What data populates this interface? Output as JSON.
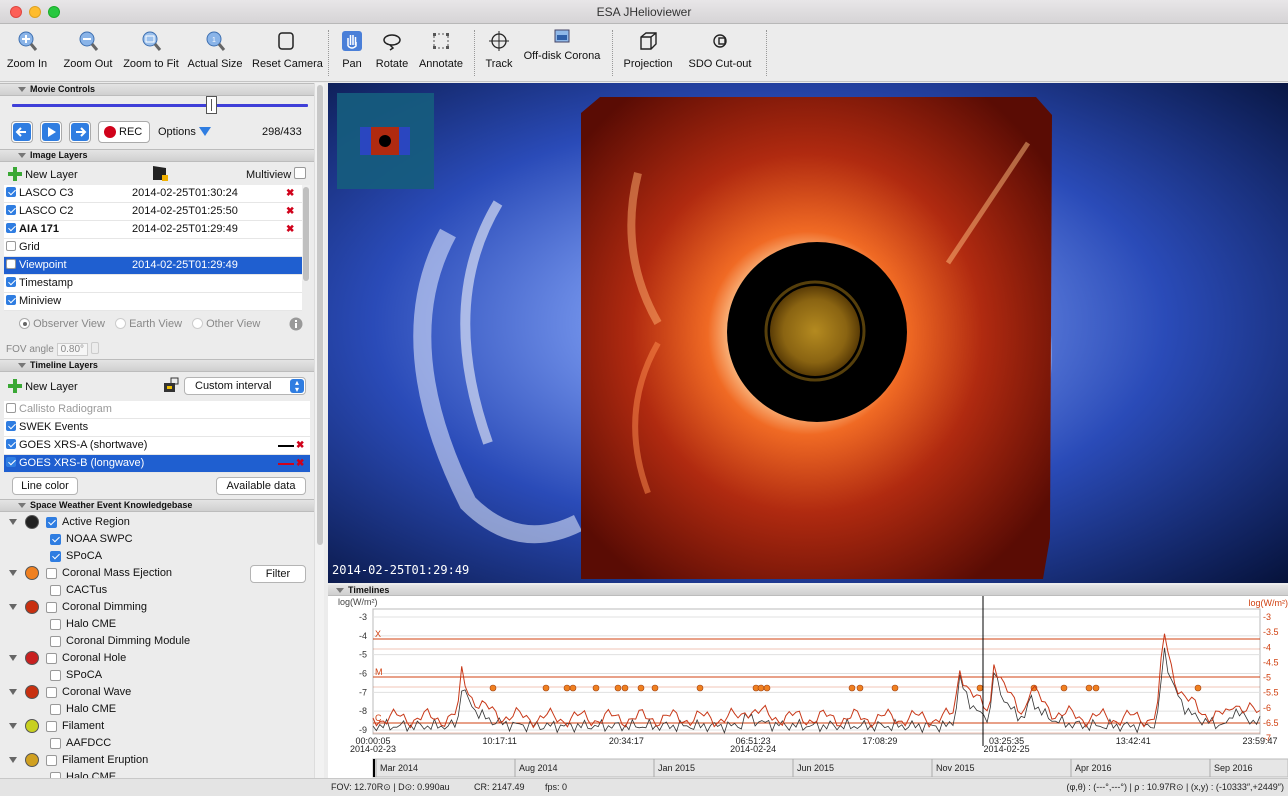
{
  "window": {
    "title": "ESA JHelioviewer"
  },
  "toolbar": {
    "zoom_in": "Zoom In",
    "zoom_out": "Zoom Out",
    "zoom_fit": "Zoom to Fit",
    "actual_size": "Actual Size",
    "reset_camera": "Reset Camera",
    "pan": "Pan",
    "rotate": "Rotate",
    "annotate": "Annotate",
    "track": "Track",
    "offdisk": "Off-disk Corona",
    "projection": "Projection",
    "sdo_cutout": "SDO Cut-out"
  },
  "movie": {
    "header": "Movie Controls",
    "rec": "REC",
    "options": "Options",
    "frame": "298/433"
  },
  "image_layers": {
    "header": "Image Layers",
    "new_layer": "New Layer",
    "multiview": "Multiview",
    "rows": [
      {
        "name": "LASCO C3",
        "date": "2014-02-25T01:30:24",
        "checked": true,
        "bold": false,
        "del": true
      },
      {
        "name": "LASCO C2",
        "date": "2014-02-25T01:25:50",
        "checked": true,
        "bold": false,
        "del": true
      },
      {
        "name": "AIA 171",
        "date": "2014-02-25T01:29:49",
        "checked": true,
        "bold": true,
        "del": true
      },
      {
        "name": "Grid",
        "date": "",
        "checked": false,
        "bold": false,
        "del": false
      },
      {
        "name": "Viewpoint",
        "date": "2014-02-25T01:29:49",
        "checked": false,
        "bold": false,
        "del": false,
        "selected": true
      },
      {
        "name": "Timestamp",
        "date": "",
        "checked": true,
        "bold": false,
        "del": false
      },
      {
        "name": "Miniview",
        "date": "",
        "checked": true,
        "bold": false,
        "del": false
      }
    ],
    "observer_view": "Observer View",
    "earth_view": "Earth View",
    "other_view": "Other View",
    "fov_label": "FOV angle",
    "fov_value": "0.80°"
  },
  "timeline_layers": {
    "header": "Timeline Layers",
    "new_layer": "New Layer",
    "interval": "Custom interval",
    "rows": [
      {
        "name": "Callisto Radiogram",
        "checked": false,
        "grey": true
      },
      {
        "name": "SWEK Events",
        "checked": true
      },
      {
        "name": "GOES XRS-A (shortwave)",
        "checked": true,
        "line": "#000000"
      },
      {
        "name": "GOES XRS-B (longwave)",
        "checked": true,
        "line": "#d0021b",
        "selected": true
      }
    ],
    "line_color": "Line color",
    "available_data": "Available data"
  },
  "swek": {
    "header": "Space Weather Event Knowledgebase",
    "filter": "Filter",
    "items": [
      {
        "label": "Active Region",
        "level": 0,
        "checked": true,
        "icon": "AR",
        "color": "#222222"
      },
      {
        "label": "NOAA SWPC",
        "level": 1,
        "checked": true
      },
      {
        "label": "SPoCA",
        "level": 1,
        "checked": true
      },
      {
        "label": "Coronal Mass Ejection",
        "level": 0,
        "checked": false,
        "icon": "CME",
        "color": "#f08020"
      },
      {
        "label": "CACTus",
        "level": 1,
        "checked": false
      },
      {
        "label": "Coronal Dimming",
        "level": 0,
        "checked": false,
        "icon": "CD",
        "color": "#c83010"
      },
      {
        "label": "Halo CME",
        "level": 1,
        "checked": false
      },
      {
        "label": "Coronal Dimming Module",
        "level": 1,
        "checked": false
      },
      {
        "label": "Coronal Hole",
        "level": 0,
        "checked": false,
        "icon": "CH",
        "color": "#c82020"
      },
      {
        "label": "SPoCA",
        "level": 1,
        "checked": false
      },
      {
        "label": "Coronal Wave",
        "level": 0,
        "checked": false,
        "icon": "CW",
        "color": "#c83010"
      },
      {
        "label": "Halo CME",
        "level": 1,
        "checked": false
      },
      {
        "label": "Filament",
        "level": 0,
        "checked": false,
        "icon": "FI",
        "color": "#c8d020"
      },
      {
        "label": "AAFDCC",
        "level": 1,
        "checked": false
      },
      {
        "label": "Filament Eruption",
        "level": 0,
        "checked": false,
        "icon": "FE",
        "color": "#d0a020"
      },
      {
        "label": "Halo CME",
        "level": 1,
        "checked": false
      }
    ]
  },
  "viewport": {
    "timestamp": "2014-02-25T01:29:49"
  },
  "timelines": {
    "header": "Timelines",
    "y_left_label": "log(W/m²)",
    "y_right_label": "log(W/m²)",
    "y_left_ticks": [
      "-3",
      "-4",
      "-5",
      "-6",
      "-7",
      "-8",
      "-9"
    ],
    "y_right_ticks": [
      "-3",
      "-3.5",
      "-4",
      "-4.5",
      "-5",
      "-5.5",
      "-6",
      "-6.5",
      "-7"
    ],
    "flare_classes": [
      "X",
      "M",
      "C"
    ],
    "x_ticks": [
      {
        "time": "00:00:05",
        "date": "2014-02-23"
      },
      {
        "time": "10:17:11",
        "date": ""
      },
      {
        "time": "20:34:17",
        "date": ""
      },
      {
        "time": "06:51:23",
        "date": "2014-02-24"
      },
      {
        "time": "17:08:29",
        "date": ""
      },
      {
        "time": "03:25:35",
        "date": "2014-02-25"
      },
      {
        "time": "13:42:41",
        "date": ""
      },
      {
        "time": "23:59:47",
        "date": ""
      }
    ],
    "overview_ticks": [
      "Mar 2014",
      "Aug 2014",
      "Jan 2015",
      "Jun 2015",
      "Nov 2015",
      "Apr 2016",
      "Sep 2016"
    ]
  },
  "status": {
    "fov": "FOV: 12.70R⊙ | D⊙: 0.990au",
    "cr": "CR: 2147.49",
    "fps": "fps: 0",
    "coords": "(φ,θ) : (---°,---°) | ρ : 10.97R⊙ | (x,y) : (-10333″,+2449″)"
  }
}
